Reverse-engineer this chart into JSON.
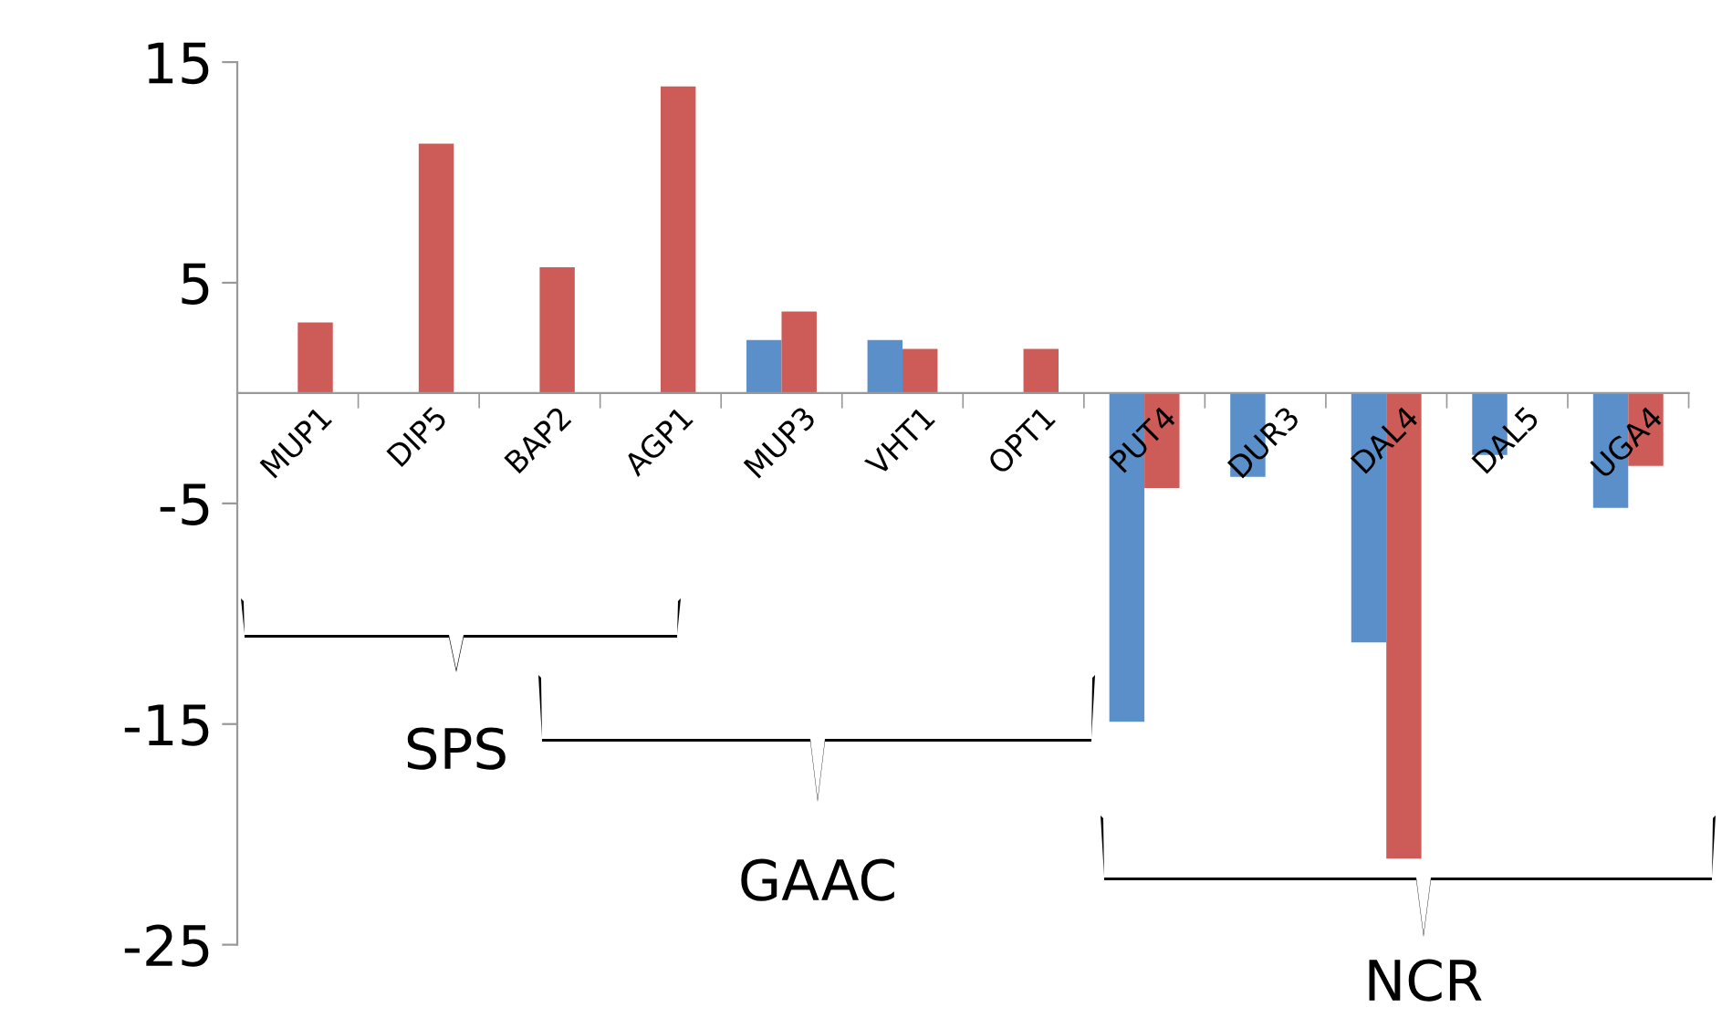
{
  "chart_data": {
    "type": "bar",
    "categories": [
      "MUP1",
      "DIP5",
      "BAP2",
      "AGP1",
      "MUP3",
      "VHT1",
      "OPT1",
      "PUT4",
      "DUR3",
      "DAL4",
      "DAL5",
      "UGA4"
    ],
    "series": [
      {
        "color": "#5b8fc9",
        "values": [
          null,
          null,
          null,
          null,
          2.4,
          2.4,
          null,
          -14.9,
          -3.8,
          -11.3,
          -2.8,
          -5.2
        ]
      },
      {
        "color": "#cd5c58",
        "values": [
          3.2,
          11.3,
          5.7,
          13.9,
          3.7,
          2.0,
          2.0,
          -4.3,
          null,
          -21.1,
          null,
          -3.3
        ]
      }
    ],
    "ylim": [
      -25,
      15
    ],
    "yticks": [
      -25,
      -15,
      -5,
      5,
      15
    ],
    "grid": false,
    "legend": false,
    "annotations": [
      "SPS",
      "GAAC",
      "NCR"
    ]
  }
}
